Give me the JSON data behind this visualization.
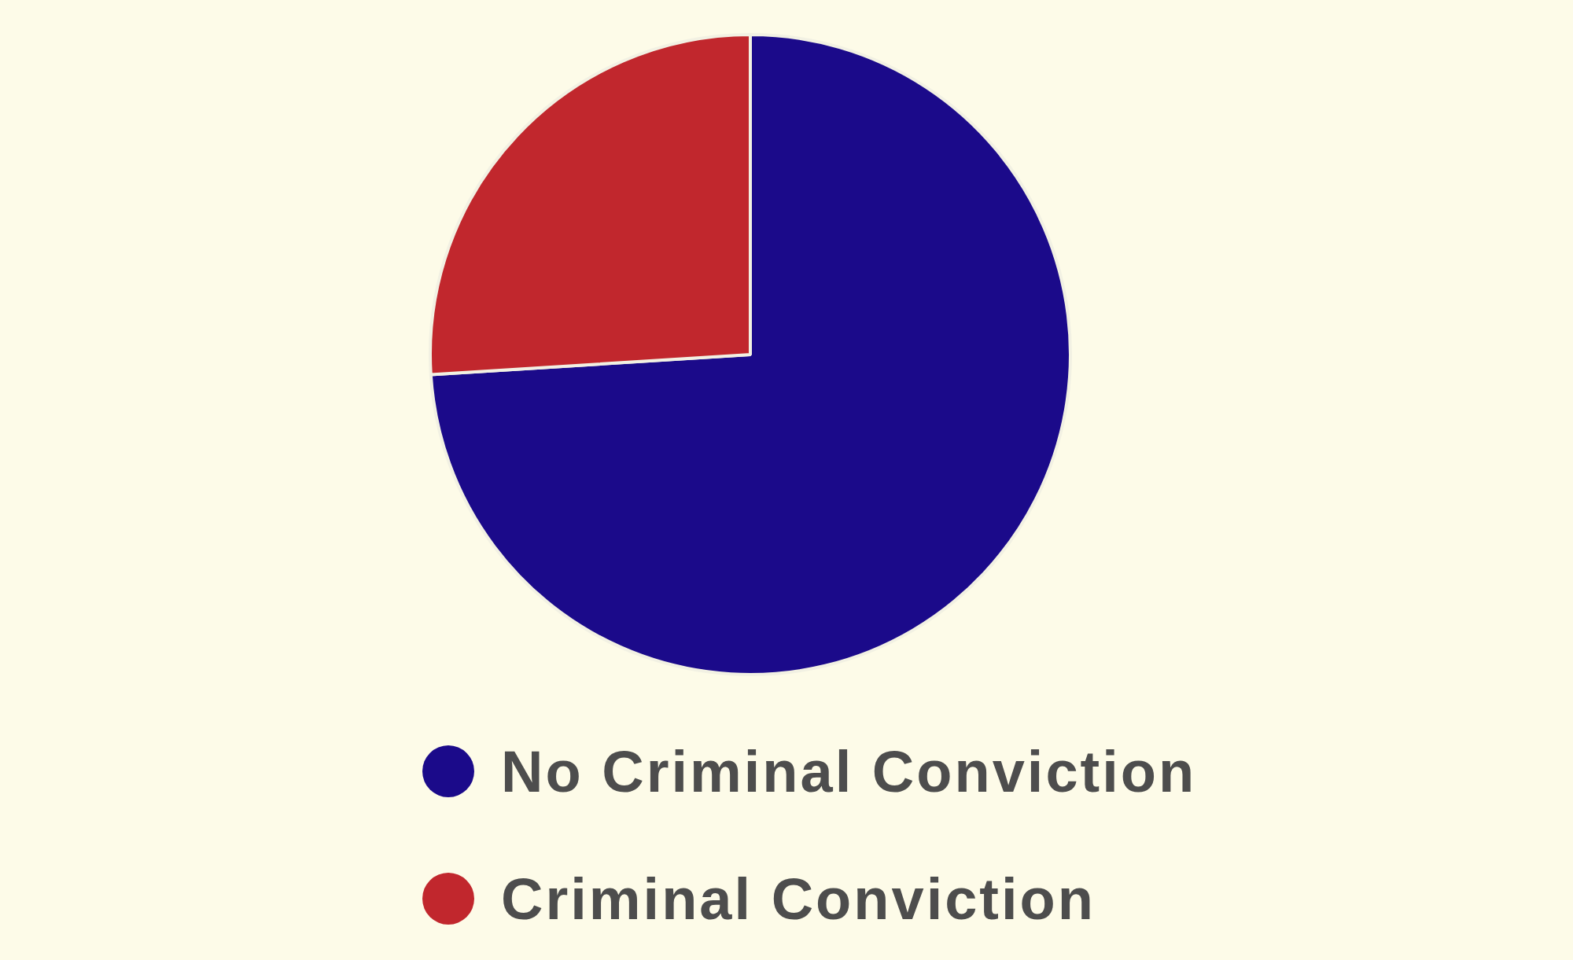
{
  "chart_data": {
    "type": "pie",
    "categories": [
      "No Criminal Conviction",
      "Criminal Conviction"
    ],
    "values": [
      74,
      26
    ],
    "colors": [
      "#1b0a8a",
      "#c1272d"
    ],
    "legend": "bottom"
  }
}
